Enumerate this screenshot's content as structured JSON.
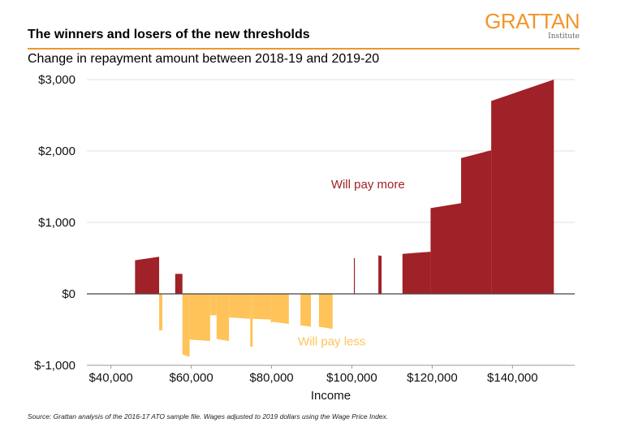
{
  "header": {
    "title": "The winners and losers of the new thresholds",
    "subtitle": "Change in repayment amount between 2018-19 and 2019-20",
    "logo_main": "GRATTAN",
    "logo_sub": "Institute"
  },
  "footer": {
    "source": "Source: Grattan analysis of the 2016-17 ATO sample file. Wages adjusted to 2019 dollars using the Wage Price Index."
  },
  "colors": {
    "accent": "#F0962B",
    "pay_more": "#A02128",
    "pay_less": "#FFC35A",
    "grid": "#E0E0E0",
    "zero_line": "#444444"
  },
  "chart_data": {
    "type": "area",
    "title": "The winners and losers of the new thresholds",
    "subtitle": "Change in repayment amount between 2018-19 and 2019-20",
    "xlabel": "Income",
    "ylabel": "",
    "xlim": [
      34000,
      155500
    ],
    "ylim": [
      -1000,
      3000
    ],
    "grid": true,
    "x_ticks": [
      40000,
      60000,
      80000,
      100000,
      120000,
      140000
    ],
    "x_tick_labels": [
      "$40,000",
      "$60,000",
      "$80,000",
      "$100,000",
      "$120,000",
      "$140,000"
    ],
    "y_ticks": [
      3000,
      2000,
      1000,
      0,
      -1000
    ],
    "y_tick_labels": [
      "$3,000",
      "$2,000",
      "$1,000",
      "$0",
      "$-1,000"
    ],
    "annotations": [
      {
        "text": "Will pay more",
        "x": 104000,
        "y": 1480,
        "series": "Will pay more"
      },
      {
        "text": "Will pay less",
        "x": 95000,
        "y": -720,
        "series": "Will pay less"
      }
    ],
    "series": [
      {
        "name": "Will pay more",
        "segments": [
          {
            "x": [
              46000,
              52000
            ],
            "y": [
              470,
              520
            ]
          },
          {
            "x": [
              56000,
              57800
            ],
            "y": [
              280,
              280
            ]
          },
          {
            "x": [
              100500,
              100700
            ],
            "y": [
              500,
              500
            ]
          },
          {
            "x": [
              106600,
              107400
            ],
            "y": [
              540,
              530
            ]
          },
          {
            "x": [
              112600,
              119600
            ],
            "y": [
              560,
              590
            ]
          },
          {
            "x": [
              119600,
              127200
            ],
            "y": [
              1200,
              1270
            ]
          },
          {
            "x": [
              127200,
              134700
            ],
            "y": [
              1900,
              2010
            ]
          },
          {
            "x": [
              134700,
              150300
            ],
            "y": [
              2700,
              3000
            ]
          }
        ]
      },
      {
        "name": "Will pay less",
        "segments": [
          {
            "x": [
              52000,
              52800
            ],
            "y": [
              -510,
              -510
            ]
          },
          {
            "x": [
              57800,
              59600
            ],
            "y": [
              -850,
              -880
            ]
          },
          {
            "x": [
              59600,
              64700
            ],
            "y": [
              -640,
              -660
            ]
          },
          {
            "x": [
              64700,
              66300
            ],
            "y": [
              -300,
              -300
            ]
          },
          {
            "x": [
              66300,
              69400
            ],
            "y": [
              -630,
              -660
            ]
          },
          {
            "x": [
              69400,
              74700
            ],
            "y": [
              -330,
              -350
            ]
          },
          {
            "x": [
              74700,
              75300
            ],
            "y": [
              -740,
              -740
            ]
          },
          {
            "x": [
              75300,
              79800
            ],
            "y": [
              -350,
              -360
            ]
          },
          {
            "x": [
              79800,
              80200
            ],
            "y": [
              -400,
              -400
            ]
          },
          {
            "x": [
              80200,
              84300
            ],
            "y": [
              -390,
              -420
            ]
          },
          {
            "x": [
              87200,
              89800
            ],
            "y": [
              -440,
              -460
            ]
          },
          {
            "x": [
              91800,
              95200
            ],
            "y": [
              -460,
              -490
            ]
          }
        ]
      }
    ]
  }
}
